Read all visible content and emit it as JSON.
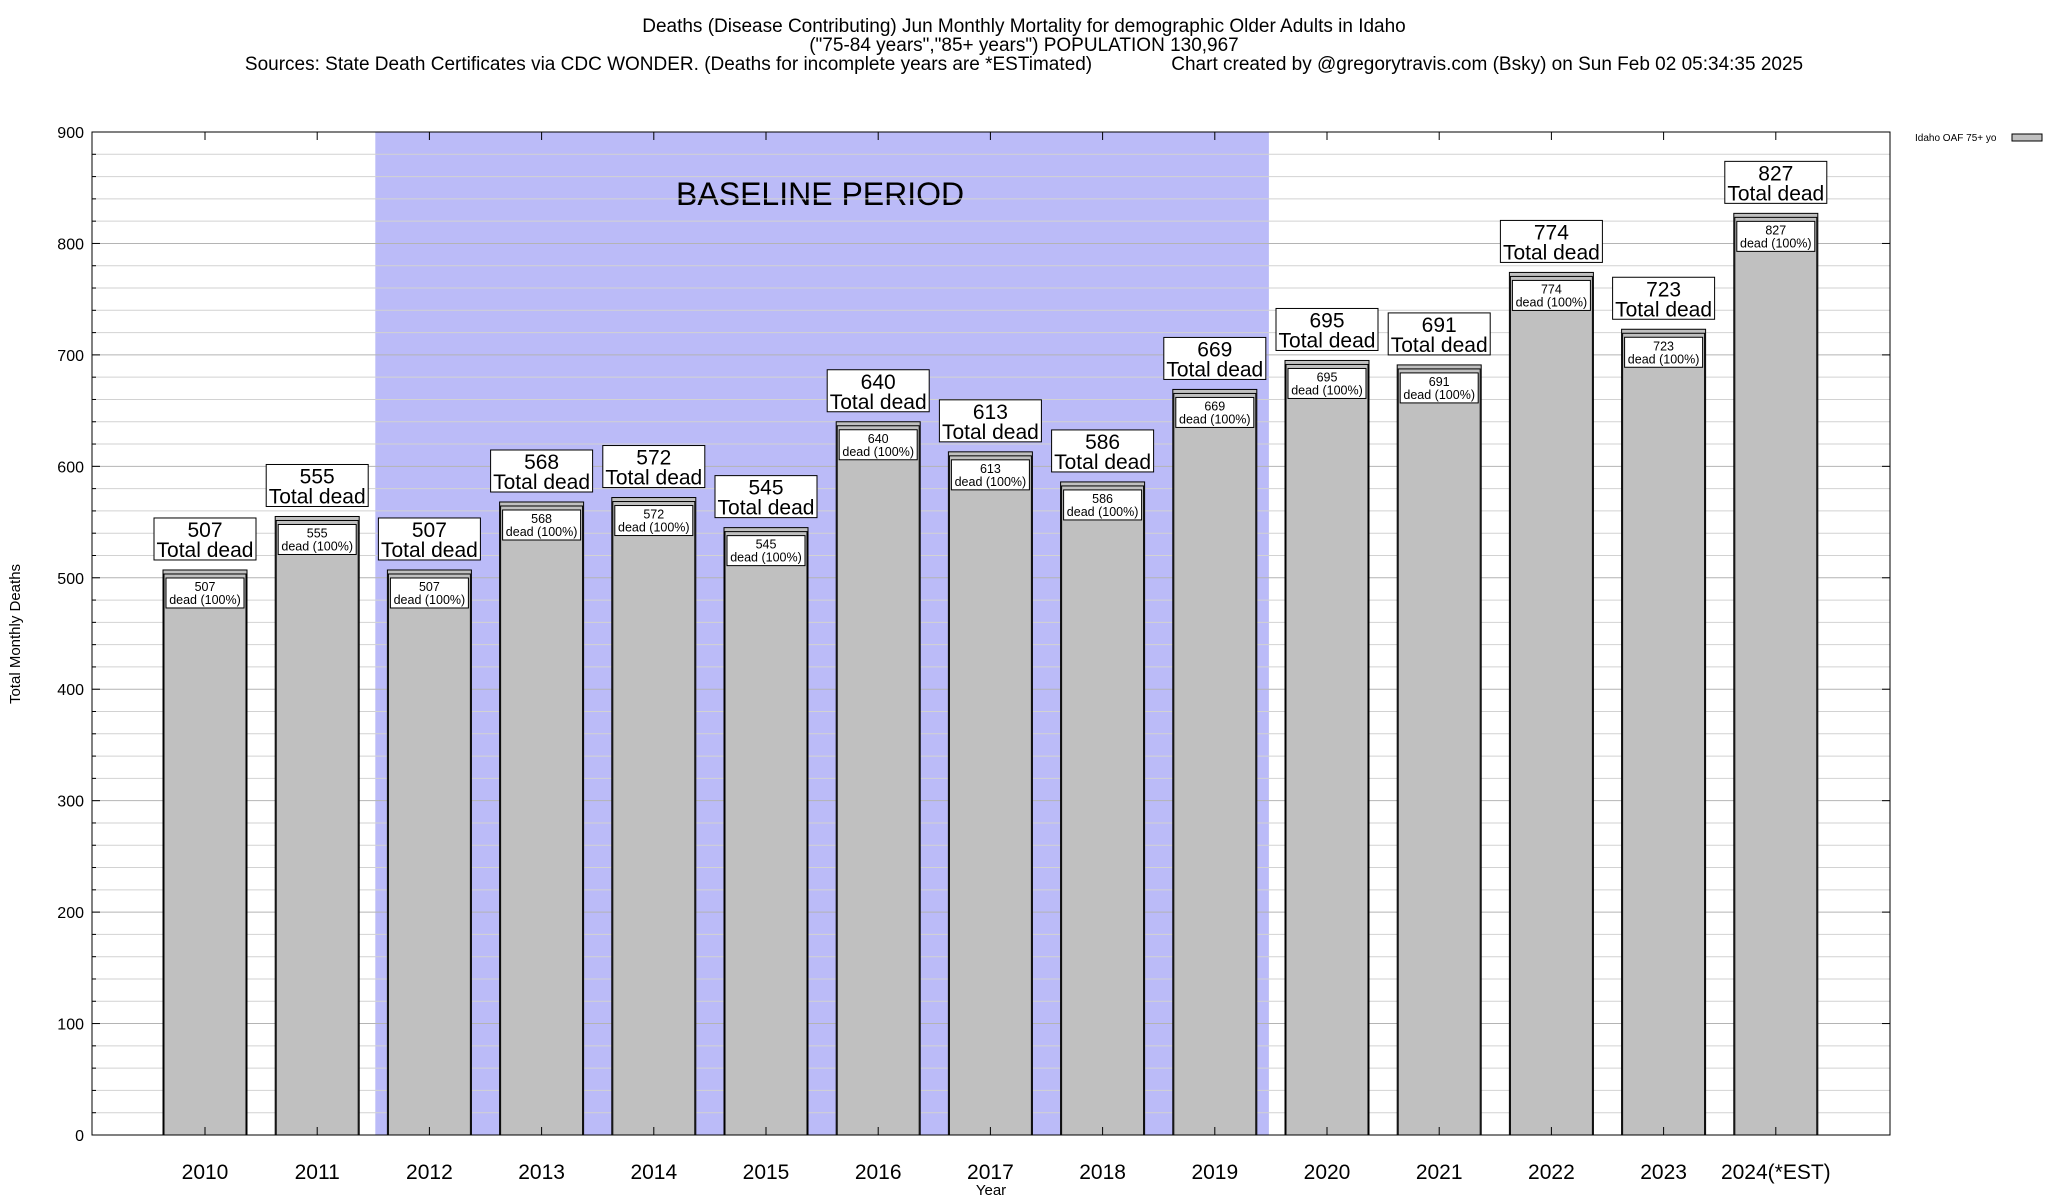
{
  "chart_data": {
    "type": "bar",
    "title_lines": [
      "Deaths (Disease Contributing) Jun Monthly Mortality for demographic Older Adults in Idaho",
      "(\"75-84 years\",\"85+ years\") POPULATION 130,967",
      "Sources: State Death Certificates via CDC WONDER. (Deaths for incomplete years are *ESTimated)               Chart created by @gregorytravis.com (Bsky) on Sun Feb 02 05:34:35 2025"
    ],
    "xlabel": "Year",
    "ylabel": "Total Monthly Deaths",
    "ylim": [
      0,
      900
    ],
    "y_ticks": [
      0,
      100,
      200,
      300,
      400,
      500,
      600,
      700,
      800,
      900
    ],
    "categories": [
      "2010",
      "2011",
      "2012",
      "2013",
      "2014",
      "2015",
      "2016",
      "2017",
      "2018",
      "2019",
      "2020",
      "2021",
      "2022",
      "2023",
      "2024(*EST)"
    ],
    "series": [
      {
        "name": "Idaho OAF 75+ yo",
        "values": [
          507,
          555,
          507,
          568,
          572,
          545,
          640,
          613,
          586,
          669,
          695,
          691,
          774,
          723,
          827
        ],
        "color": "#c0c0c0"
      }
    ],
    "top_label_suffix": "Total dead",
    "inner_label_suffix": "dead (100%)",
    "baseline_band": {
      "label": "BASELINE PERIOD",
      "from_category": "2012",
      "to_category": "2019",
      "color": "#bbbbf8"
    },
    "grid": true,
    "legend_position": "top-right"
  }
}
